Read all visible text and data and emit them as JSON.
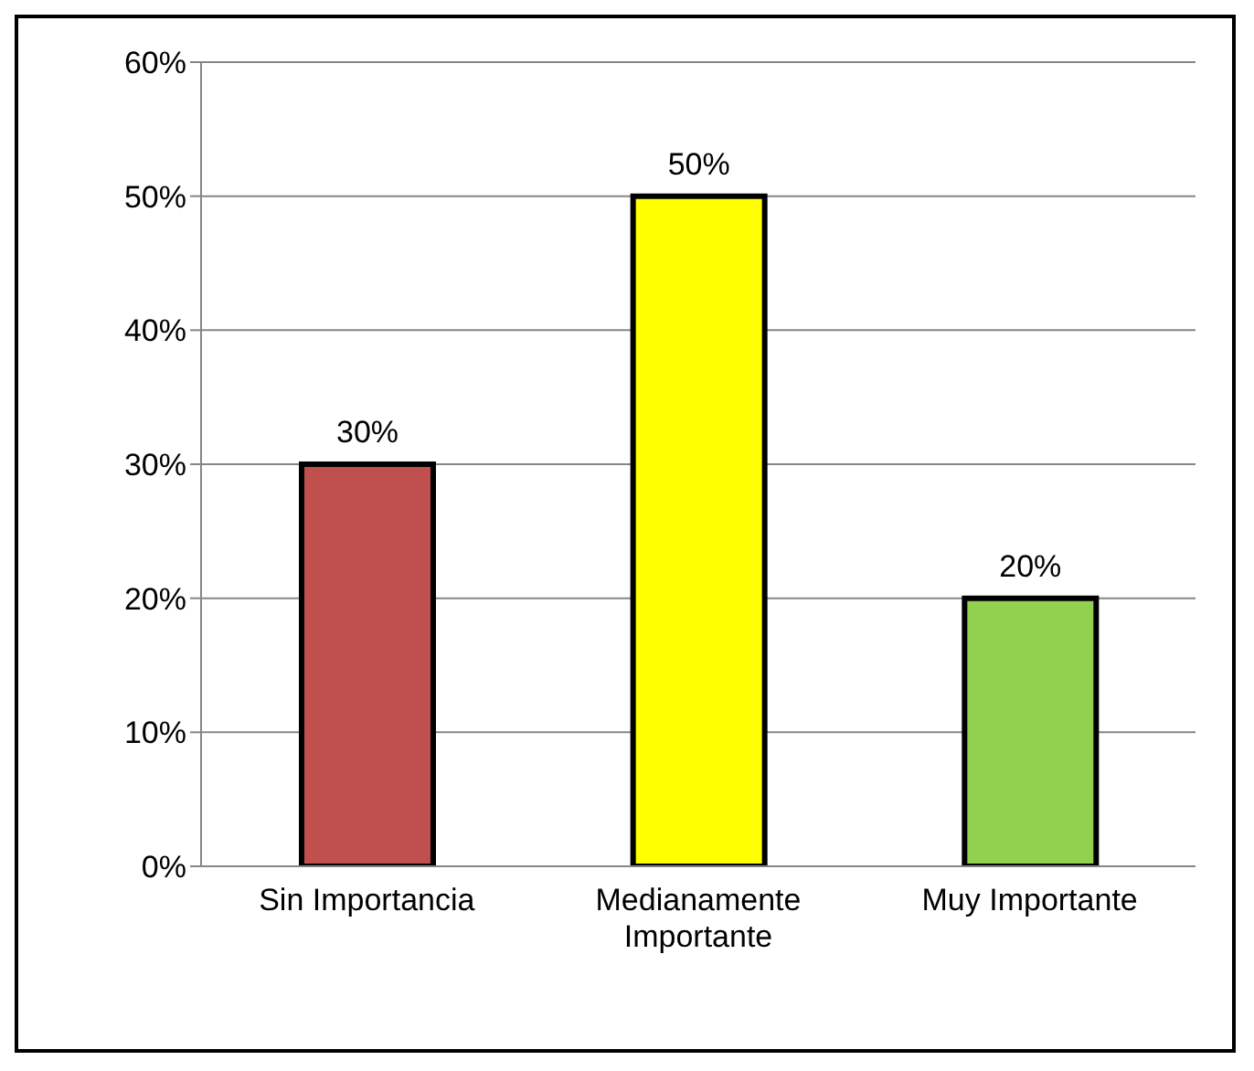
{
  "chart_data": {
    "type": "bar",
    "categories": [
      "Sin Importancia",
      "Medianamente Importante",
      "Muy Importante"
    ],
    "values": [
      30,
      50,
      20
    ],
    "colors": [
      "#c0504d",
      "#ffff00",
      "#92d050"
    ],
    "value_labels": [
      "30%",
      "50%",
      "20%"
    ],
    "ylim": [
      0,
      60
    ],
    "yticks": [
      {
        "value": 0,
        "label": "0%"
      },
      {
        "value": 10,
        "label": "10%"
      },
      {
        "value": 20,
        "label": "20%"
      },
      {
        "value": 30,
        "label": "30%"
      },
      {
        "value": 40,
        "label": "40%"
      },
      {
        "value": 50,
        "label": "50%"
      },
      {
        "value": 60,
        "label": "60%"
      }
    ],
    "grid": "y"
  }
}
